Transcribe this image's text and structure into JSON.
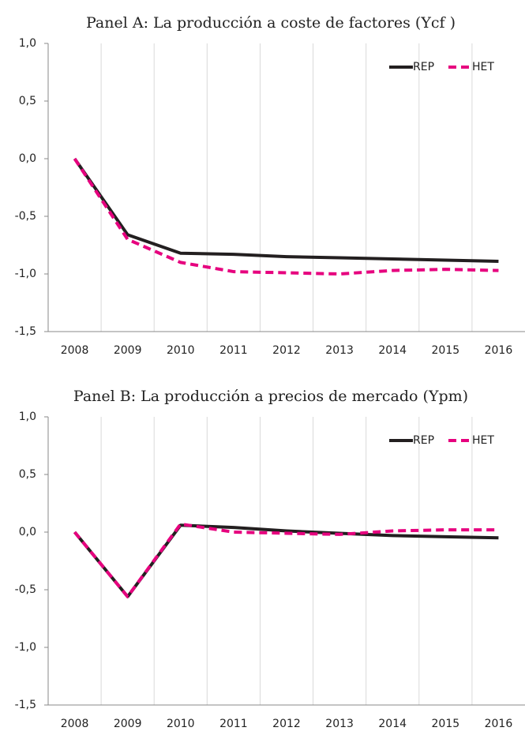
{
  "chart_data": [
    {
      "type": "line",
      "title": "Panel A: La producción a coste de factores (Ycf )",
      "categories": [
        "2008",
        "2009",
        "2010",
        "2011",
        "2012",
        "2013",
        "2014",
        "2015",
        "2016"
      ],
      "series": [
        {
          "name": "REP",
          "color": "#231f20",
          "values": [
            0,
            -0.66,
            -0.82,
            -0.83,
            -0.85,
            -0.86,
            -0.87,
            -0.88,
            -0.89
          ]
        },
        {
          "name": "HET",
          "color": "#e6007e",
          "dashed": true,
          "values": [
            0,
            -0.7,
            -0.9,
            -0.98,
            -0.99,
            -1.0,
            -0.97,
            -0.96,
            -0.97
          ]
        }
      ],
      "ylim": [
        -1.5,
        1
      ],
      "yticks": [
        {
          "value": -1.5,
          "label": "-1,5"
        },
        {
          "value": -1,
          "label": "-1,0"
        },
        {
          "value": -0.5,
          "label": "-0,5"
        },
        {
          "value": 0,
          "label": "0,0"
        },
        {
          "value": 0.5,
          "label": "0,5"
        },
        {
          "value": 1,
          "label": "1,0"
        }
      ],
      "legend": "top-right"
    },
    {
      "type": "line",
      "title": "Panel B: La producción a precios de mercado (Ypm)",
      "categories": [
        "2008",
        "2009",
        "2010",
        "2011",
        "2012",
        "2013",
        "2014",
        "2015",
        "2016"
      ],
      "series": [
        {
          "name": "REP",
          "color": "#231f20",
          "values": [
            0,
            -0.56,
            0.06,
            0.04,
            0.01,
            -0.01,
            -0.03,
            -0.04,
            -0.05
          ]
        },
        {
          "name": "HET",
          "color": "#e6007e",
          "dashed": true,
          "values": [
            0,
            -0.56,
            0.07,
            0.0,
            -0.01,
            -0.02,
            0.01,
            0.02,
            0.02
          ]
        }
      ],
      "ylim": [
        -1.5,
        1
      ],
      "yticks": [
        {
          "value": -1.5,
          "label": "-1,5"
        },
        {
          "value": -1,
          "label": "-1,0"
        },
        {
          "value": -0.5,
          "label": "-0,5"
        },
        {
          "value": 0,
          "label": "0,0"
        },
        {
          "value": 0.5,
          "label": "0,5"
        },
        {
          "value": 1,
          "label": "1,0"
        }
      ],
      "legend": "top-right"
    }
  ]
}
